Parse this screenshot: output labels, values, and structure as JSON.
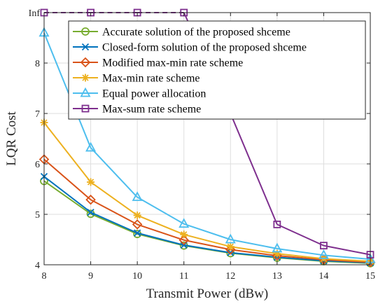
{
  "chart_data": {
    "type": "line",
    "xlabel": "Transmit Power (dBw)",
    "ylabel": "LQR Cost",
    "x": [
      8,
      9,
      10,
      11,
      12,
      13,
      14,
      15
    ],
    "xlim": [
      8,
      15
    ],
    "ylim": [
      4,
      9
    ],
    "x_ticks": [
      "8",
      "9",
      "10",
      "11",
      "12",
      "13",
      "14",
      "15"
    ],
    "y_ticks": [
      "4",
      "5",
      "6",
      "7",
      "8",
      "Inf"
    ],
    "y_tick_values": [
      4,
      5,
      6,
      7,
      8,
      9
    ],
    "inf_tick_label": "Inf",
    "grid": true,
    "legend_position": "top-right",
    "series": [
      {
        "name": "Accurate solution of the proposed shceme",
        "color": "#77ac30",
        "marker": "circle",
        "line": "solid",
        "values": [
          5.66,
          5.01,
          4.61,
          4.38,
          4.23,
          4.14,
          4.07,
          4.03
        ]
      },
      {
        "name": "Closed-form solution of the proposed shceme",
        "color": "#0072bd",
        "marker": "x",
        "line": "solid",
        "values": [
          5.75,
          5.04,
          4.63,
          4.39,
          4.24,
          4.15,
          4.08,
          4.04
        ]
      },
      {
        "name": "Modified max-min rate scheme",
        "color": "#d95319",
        "marker": "diamond",
        "line": "solid",
        "values": [
          6.09,
          5.29,
          4.8,
          4.49,
          4.3,
          4.18,
          4.1,
          4.05
        ]
      },
      {
        "name": "Max-min rate scheme",
        "color": "#edb120",
        "marker": "star",
        "line": "solid",
        "values": [
          6.82,
          5.64,
          4.98,
          4.6,
          4.36,
          4.22,
          4.12,
          4.07
        ]
      },
      {
        "name": "Equal power allocation",
        "color": "#4dbeee",
        "marker": "triangle",
        "line": "solid",
        "values": [
          8.6,
          6.32,
          5.34,
          4.81,
          4.5,
          4.32,
          4.19,
          4.11
        ]
      },
      {
        "name": "Max-sum rate scheme",
        "color": "#7e2f8e",
        "marker": "square",
        "line": "dashed-until-inf",
        "values": [
          "Inf",
          "Inf",
          "Inf",
          "Inf",
          7.0,
          4.8,
          4.38,
          4.2
        ]
      }
    ]
  }
}
